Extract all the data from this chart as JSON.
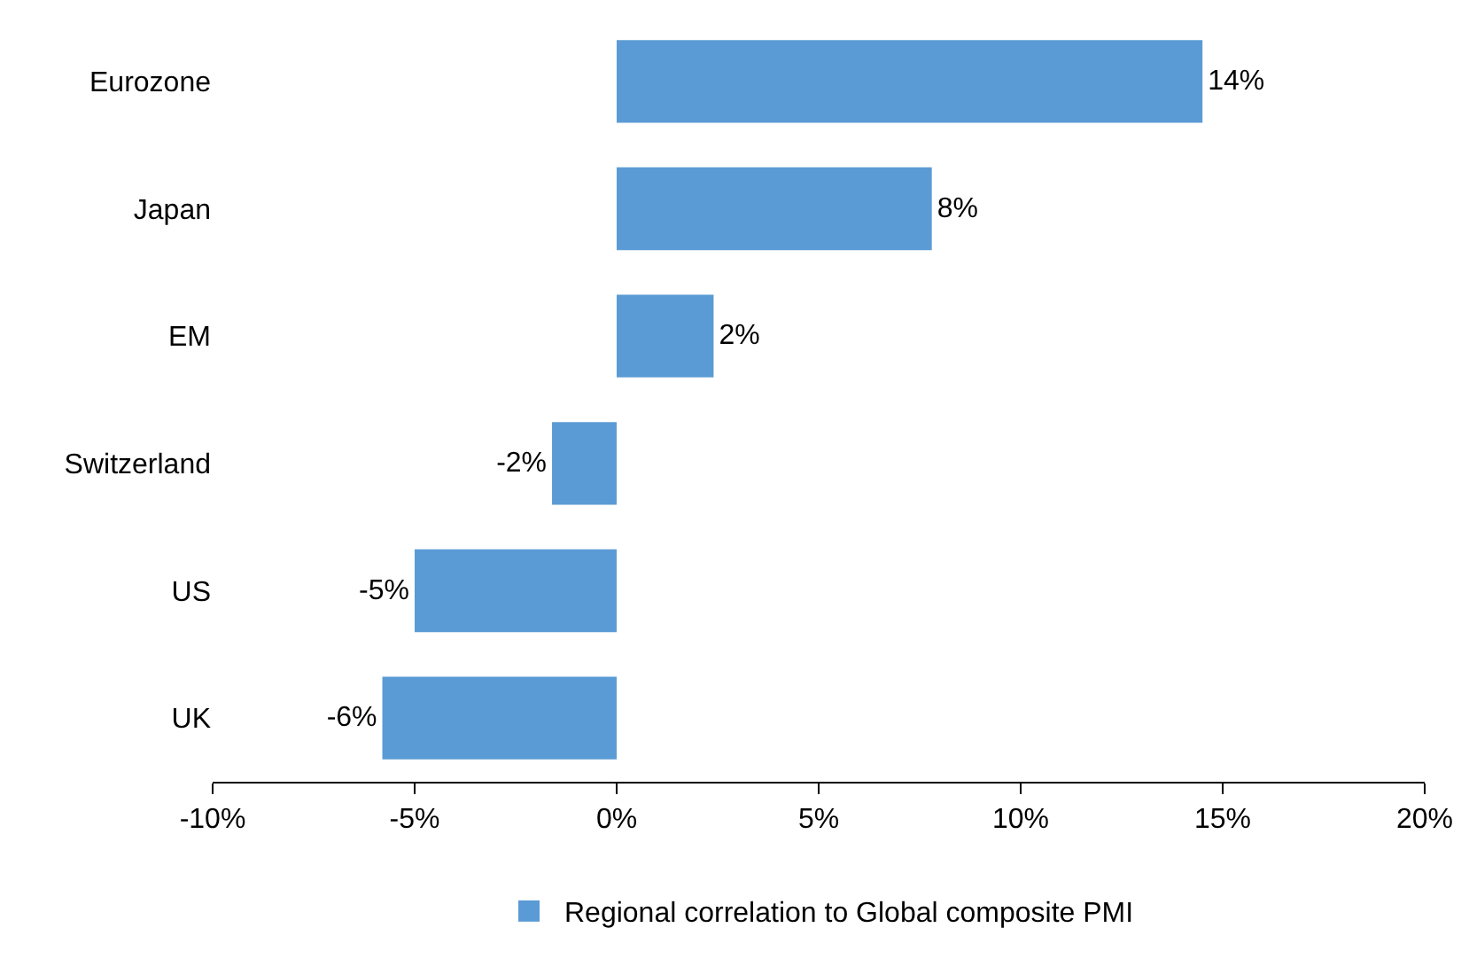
{
  "chart_data": {
    "type": "bar",
    "orientation": "horizontal",
    "categories": [
      "Eurozone",
      "Japan",
      "EM",
      "Switzerland",
      "US",
      "UK"
    ],
    "series": [
      {
        "name": "Regional correlation to Global composite PMI",
        "color": "#5b9bd5",
        "values": [
          14.5,
          7.8,
          2.4,
          -1.6,
          -5.0,
          -5.8
        ],
        "value_labels": [
          "14%",
          "8%",
          "2%",
          "-2%",
          "-5%",
          "-6%"
        ]
      }
    ],
    "xlim": [
      -10,
      20
    ],
    "xticks": [
      {
        "value": -10,
        "label": "-10%"
      },
      {
        "value": -5,
        "label": "-5%"
      },
      {
        "value": 0,
        "label": "0%"
      },
      {
        "value": 5,
        "label": "5%"
      },
      {
        "value": 10,
        "label": "10%"
      },
      {
        "value": 15,
        "label": "15%"
      },
      {
        "value": 20,
        "label": "20%"
      }
    ],
    "grid": false,
    "legend": "bottom"
  }
}
